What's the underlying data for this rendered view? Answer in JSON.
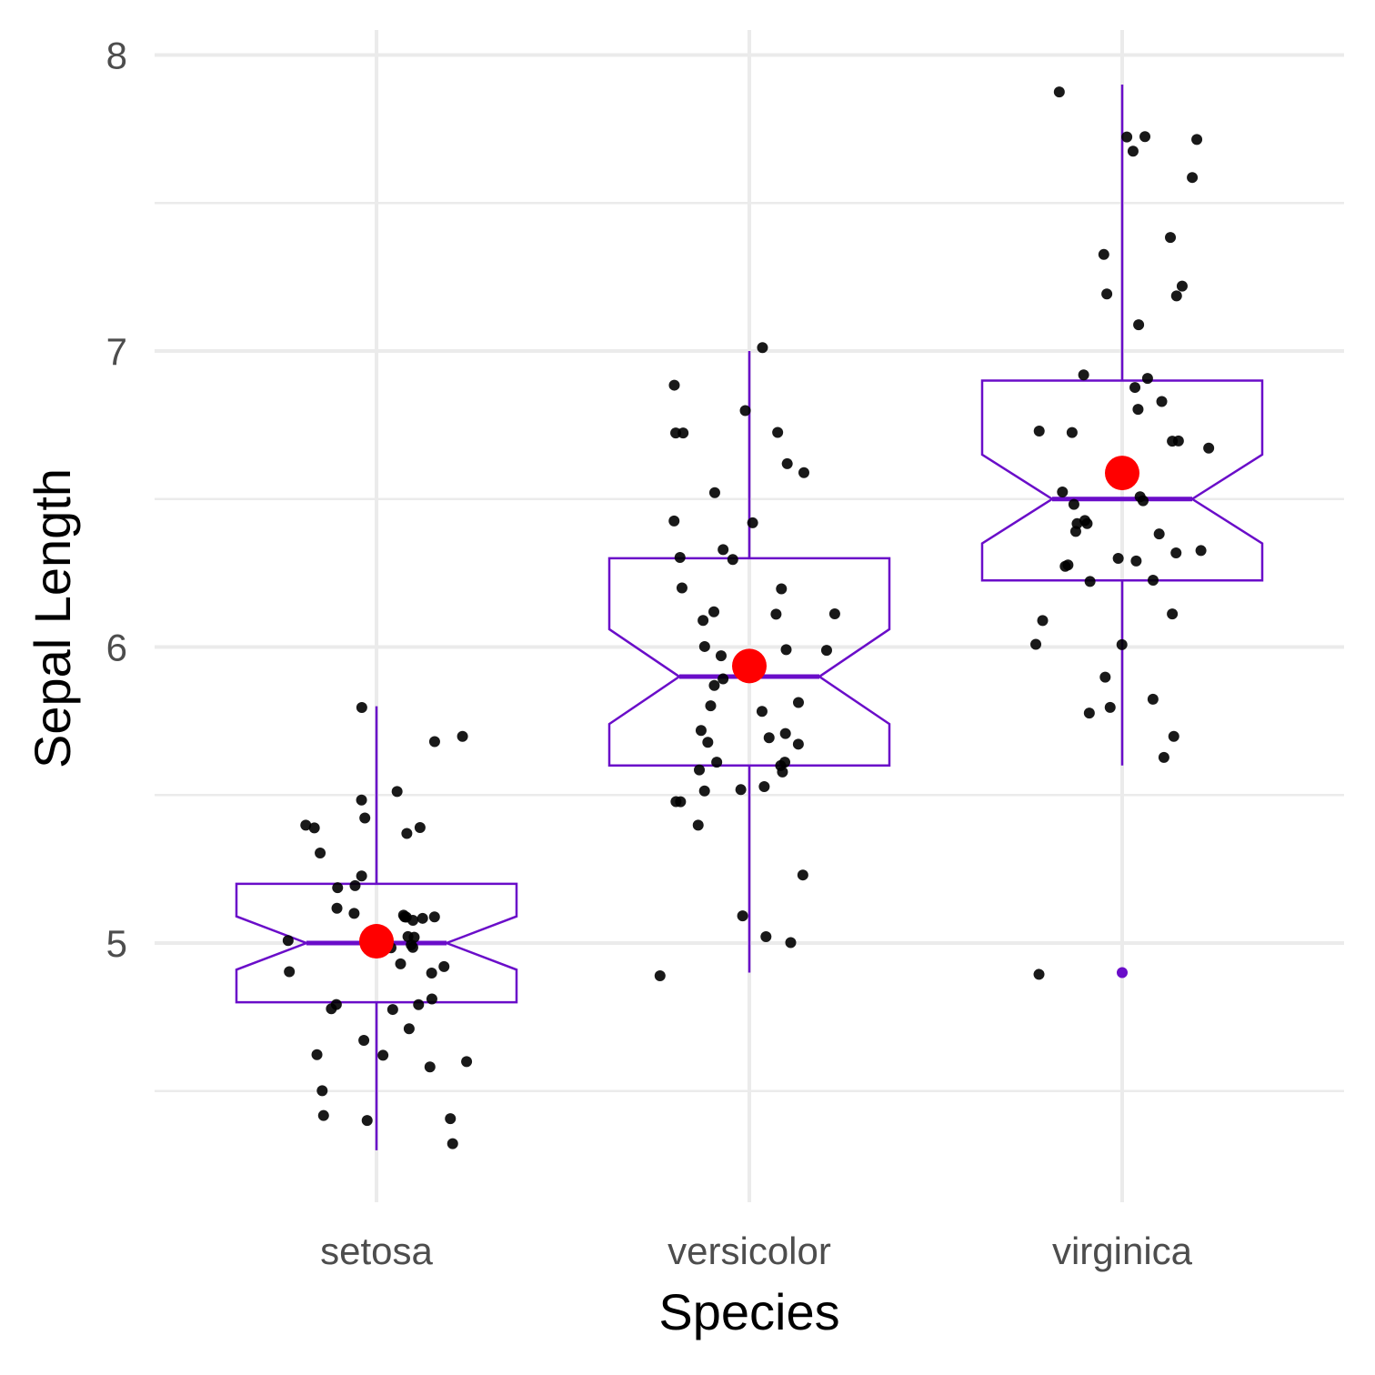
{
  "chart_data": {
    "type": "boxplot",
    "xlabel": "Species",
    "ylabel": "Sepal Length",
    "categories": [
      "setosa",
      "versicolor",
      "virginica"
    ],
    "ylim": [
      4.2,
      8.1
    ],
    "yticks": [
      5,
      6,
      7,
      8
    ],
    "yticks_minor": [
      4.5,
      5.5,
      6.5,
      7.5
    ],
    "grid": true,
    "colors": {
      "box": "#6a0dc9",
      "mean": "#ff0000",
      "points": "#000000",
      "grid": "#ebebeb"
    },
    "boxes": [
      {
        "category": "setosa",
        "lower_whisker": 4.3,
        "q1": 4.8,
        "median": 5.0,
        "q3": 5.2,
        "upper_whisker": 5.8,
        "notch_low": 4.91,
        "notch_high": 5.09,
        "mean": 5.006
      },
      {
        "category": "versicolor",
        "lower_whisker": 4.9,
        "q1": 5.6,
        "median": 5.9,
        "q3": 6.3,
        "upper_whisker": 7.0,
        "notch_low": 5.74,
        "notch_high": 6.06,
        "mean": 5.936
      },
      {
        "category": "virginica",
        "lower_whisker": 5.6,
        "q1": 6.225,
        "median": 6.5,
        "q3": 6.9,
        "upper_whisker": 7.9,
        "notch_low": 6.35,
        "notch_high": 6.65,
        "mean": 6.588,
        "outliers": [
          4.9
        ]
      }
    ],
    "points": [
      {
        "category": "setosa",
        "values": [
          5.1,
          4.9,
          4.7,
          4.6,
          5.0,
          5.4,
          4.6,
          5.0,
          4.4,
          4.9,
          5.4,
          4.8,
          4.8,
          4.3,
          5.8,
          5.7,
          5.4,
          5.1,
          5.7,
          5.1,
          5.4,
          5.1,
          4.6,
          5.1,
          4.8,
          5.0,
          5.0,
          5.2,
          5.2,
          4.7,
          4.8,
          5.4,
          5.2,
          5.5,
          4.9,
          5.0,
          5.5,
          4.9,
          4.4,
          5.1,
          5.0,
          4.5,
          4.4,
          5.0,
          5.1,
          4.8,
          5.1,
          4.6,
          5.3,
          5.0
        ]
      },
      {
        "category": "versicolor",
        "values": [
          7.0,
          6.4,
          6.9,
          5.5,
          6.5,
          5.7,
          6.3,
          4.9,
          6.6,
          5.2,
          5.0,
          5.9,
          6.0,
          6.1,
          5.6,
          6.7,
          5.6,
          5.8,
          6.2,
          5.6,
          5.9,
          6.1,
          6.3,
          6.1,
          6.4,
          6.6,
          6.8,
          6.7,
          6.0,
          5.7,
          5.5,
          5.5,
          5.8,
          6.0,
          5.4,
          6.0,
          6.7,
          6.3,
          5.6,
          5.5,
          5.5,
          6.1,
          5.8,
          5.0,
          5.6,
          5.7,
          5.7,
          6.2,
          5.1,
          5.7
        ]
      },
      {
        "category": "virginica",
        "values": [
          6.3,
          5.8,
          7.1,
          6.3,
          6.5,
          7.6,
          4.9,
          7.3,
          6.7,
          7.2,
          6.5,
          6.4,
          6.8,
          5.7,
          5.8,
          6.4,
          6.5,
          7.7,
          7.7,
          6.0,
          6.9,
          5.6,
          7.7,
          6.3,
          6.7,
          7.2,
          6.2,
          6.1,
          6.4,
          7.2,
          7.4,
          7.9,
          6.4,
          6.3,
          6.1,
          7.7,
          6.3,
          6.4,
          6.0,
          6.9,
          6.7,
          6.9,
          5.8,
          6.8,
          6.7,
          6.7,
          6.3,
          6.5,
          6.2,
          5.9
        ]
      }
    ]
  }
}
